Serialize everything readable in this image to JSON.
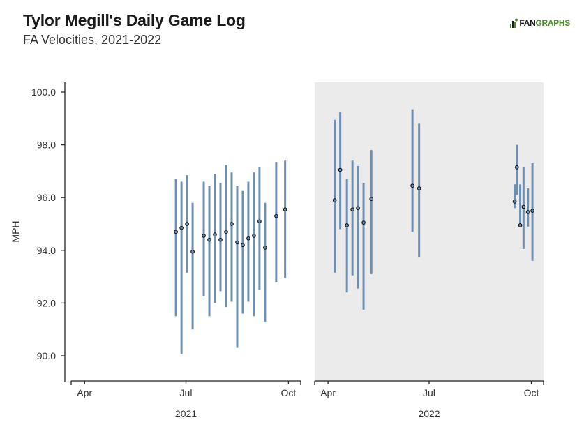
{
  "header": {
    "title": "Tylor Megill's Daily Game Log",
    "subtitle": "FA Velocities, 2021-2022"
  },
  "logo": {
    "brand": "FANGRAPHS",
    "part1": "FAN",
    "part2": "GRAPHS",
    "color": "#4a8f2a"
  },
  "colors": {
    "bar": "#6f8fb2",
    "point_fill": "#6f8fb2",
    "point_stroke": "#111111",
    "panel2_bg": "#ebebeb"
  },
  "chart_data": {
    "type": "errorbar",
    "ylabel": "MPH",
    "ylim": [
      89.0,
      100.0
    ],
    "yticks": [
      "90.0",
      "92.0",
      "94.0",
      "96.0",
      "98.0",
      "100.0"
    ],
    "panels": [
      {
        "year_label": "2021",
        "xrange": [
          "2021-03-20",
          "2021-10-12"
        ],
        "xticks": [
          {
            "label": "Apr",
            "date": "2021-04-01"
          },
          {
            "label": "Jul",
            "date": "2021-07-01"
          },
          {
            "label": "Oct",
            "date": "2021-10-01"
          }
        ],
        "games": [
          {
            "date": "2021-06-22",
            "avg": 94.7,
            "min": 91.5,
            "max": 96.7
          },
          {
            "date": "2021-06-27",
            "avg": 94.85,
            "min": 90.05,
            "max": 96.6
          },
          {
            "date": "2021-07-02",
            "avg": 95.0,
            "min": 93.15,
            "max": 96.85
          },
          {
            "date": "2021-07-07",
            "avg": 93.95,
            "min": 91.0,
            "max": 95.8
          },
          {
            "date": "2021-07-17",
            "avg": 94.55,
            "min": 92.25,
            "max": 96.6
          },
          {
            "date": "2021-07-22",
            "avg": 94.4,
            "min": 91.5,
            "max": 96.45
          },
          {
            "date": "2021-07-27",
            "avg": 94.6,
            "min": 92.0,
            "max": 96.9
          },
          {
            "date": "2021-08-01",
            "avg": 94.4,
            "min": 92.45,
            "max": 96.55
          },
          {
            "date": "2021-08-06",
            "avg": 94.7,
            "min": 91.85,
            "max": 97.25
          },
          {
            "date": "2021-08-11",
            "avg": 95.0,
            "min": 92.05,
            "max": 96.95
          },
          {
            "date": "2021-08-16",
            "avg": 94.3,
            "min": 90.3,
            "max": 96.45
          },
          {
            "date": "2021-08-21",
            "avg": 94.2,
            "min": 91.6,
            "max": 96.25
          },
          {
            "date": "2021-08-26",
            "avg": 94.45,
            "min": 92.05,
            "max": 96.6
          },
          {
            "date": "2021-08-31",
            "avg": 94.55,
            "min": 91.5,
            "max": 96.95
          },
          {
            "date": "2021-09-05",
            "avg": 95.1,
            "min": 92.5,
            "max": 97.15
          },
          {
            "date": "2021-09-10",
            "avg": 94.1,
            "min": 91.3,
            "max": 95.8
          },
          {
            "date": "2021-09-20",
            "avg": 95.3,
            "min": 92.8,
            "max": 97.35
          },
          {
            "date": "2021-09-28",
            "avg": 95.55,
            "min": 92.95,
            "max": 97.4
          }
        ]
      },
      {
        "year_label": "2022",
        "xrange": [
          "2022-03-20",
          "2022-10-12"
        ],
        "xticks": [
          {
            "label": "Apr",
            "date": "2022-04-01"
          },
          {
            "label": "Jul",
            "date": "2022-07-01"
          },
          {
            "label": "Oct",
            "date": "2022-10-01"
          }
        ],
        "games": [
          {
            "date": "2022-04-07",
            "avg": 95.9,
            "min": 93.15,
            "max": 98.95
          },
          {
            "date": "2022-04-12",
            "avg": 97.05,
            "min": 94.8,
            "max": 99.25
          },
          {
            "date": "2022-04-18",
            "avg": 94.95,
            "min": 92.4,
            "max": 96.7
          },
          {
            "date": "2022-04-23",
            "avg": 95.55,
            "min": 93.05,
            "max": 97.4
          },
          {
            "date": "2022-04-28",
            "avg": 95.6,
            "min": 92.55,
            "max": 97.2
          },
          {
            "date": "2022-05-03",
            "avg": 95.05,
            "min": 91.75,
            "max": 96.55
          },
          {
            "date": "2022-05-10",
            "avg": 95.95,
            "min": 93.1,
            "max": 97.8
          },
          {
            "date": "2022-06-16",
            "avg": 96.45,
            "min": 94.7,
            "max": 99.35
          },
          {
            "date": "2022-06-22",
            "avg": 96.35,
            "min": 93.75,
            "max": 98.8
          },
          {
            "date": "2022-09-16",
            "avg": 95.85,
            "min": 95.6,
            "max": 96.5
          },
          {
            "date": "2022-09-18",
            "avg": 97.15,
            "min": 96.1,
            "max": 98.0
          },
          {
            "date": "2022-09-21",
            "avg": 94.95,
            "min": 95.0,
            "max": 96.5
          },
          {
            "date": "2022-09-24",
            "avg": 95.65,
            "min": 94.05,
            "max": 97.15
          },
          {
            "date": "2022-09-28",
            "avg": 95.45,
            "min": 94.9,
            "max": 96.35
          },
          {
            "date": "2022-10-02",
            "avg": 95.5,
            "min": 93.6,
            "max": 97.3
          }
        ]
      }
    ]
  }
}
